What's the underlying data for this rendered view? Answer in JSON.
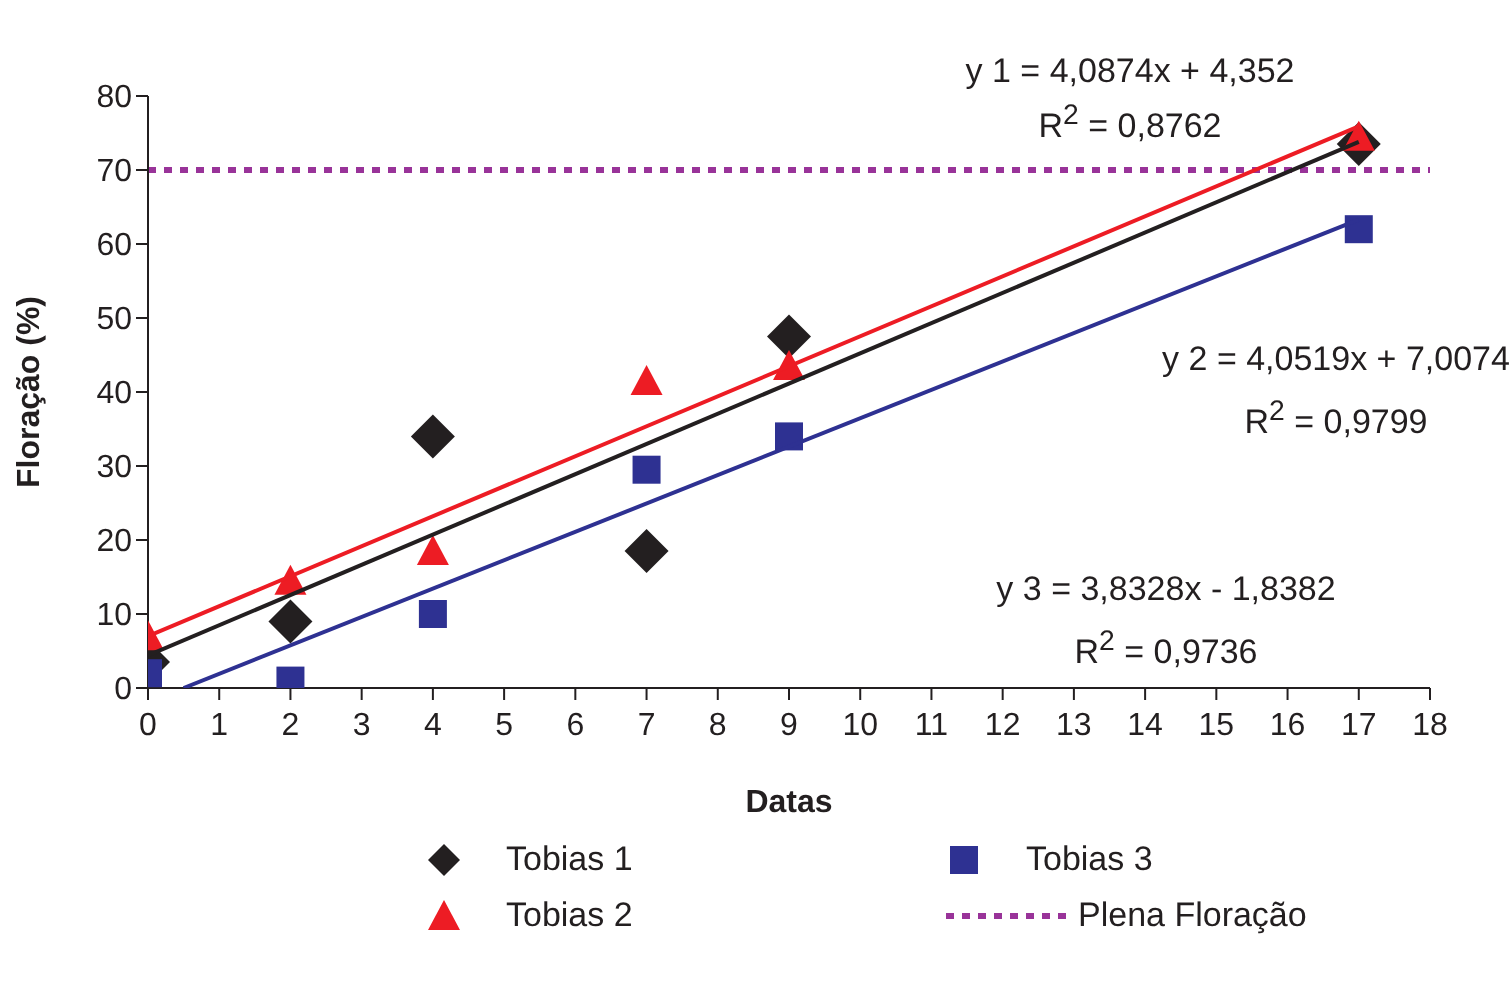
{
  "chart_data": {
    "type": "scatter",
    "xlabel": "Datas",
    "ylabel": "Floração (%)",
    "xlim": [
      0,
      18
    ],
    "xticks": [
      0,
      1,
      2,
      3,
      4,
      5,
      6,
      7,
      8,
      9,
      10,
      11,
      12,
      13,
      14,
      15,
      16,
      17,
      18
    ],
    "ylim": [
      0,
      80
    ],
    "yticks": [
      0,
      10,
      20,
      30,
      40,
      50,
      60,
      70,
      80
    ],
    "legend": "bottom",
    "x": [
      0,
      2,
      4,
      7,
      9,
      17
    ],
    "series": [
      {
        "name": "Tobias 1",
        "color": "#231f20",
        "marker": "diamond",
        "values": [
          3.5,
          9,
          34,
          18.5,
          47.5,
          73.5
        ]
      },
      {
        "name": "Tobias 2",
        "color": "#ed1c24",
        "marker": "triangle",
        "values": [
          7,
          14.5,
          18.5,
          41.5,
          43.5,
          74.5
        ]
      },
      {
        "name": "Tobias 3",
        "color": "#2e3192",
        "marker": "square",
        "values": [
          2,
          1,
          10,
          29.5,
          34,
          62
        ]
      },
      {
        "type": "line",
        "color": "#231f20",
        "marker": "none",
        "x": [
          0,
          17
        ],
        "values": [
          4.4,
          73.8
        ]
      },
      {
        "type": "line",
        "color": "#ed1c24",
        "marker": "none",
        "x": [
          0,
          17
        ],
        "values": [
          7,
          75.9
        ]
      },
      {
        "type": "line",
        "color": "#2e3192",
        "marker": "none",
        "x": [
          0.5,
          17
        ],
        "values": [
          0,
          63.3
        ]
      }
    ],
    "ref_lines": [
      {
        "axis": "y",
        "value": 70,
        "label": "Plena Floração",
        "color": "#993399",
        "line_style": "dashed"
      }
    ],
    "annotations": [
      "y 1 = 4,0874x + 4,352",
      "R$^{2}$ = 0,8762",
      "y 2 = 4,0519x + 7,0074",
      "R$^{2}$ = 0,9799",
      "y 3 = 3,8328x - 1,8382",
      "R$^{2}$ = 0,9736"
    ]
  }
}
